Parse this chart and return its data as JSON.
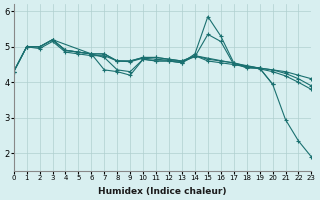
{
  "bg_color": "#d8eff0",
  "grid_color": "#b0d0d0",
  "line_color": "#1a7070",
  "xlabel": "Humidex (Indice chaleur)",
  "xlim": [
    0,
    23
  ],
  "ylim": [
    1.5,
    6.2
  ],
  "yticks": [
    2,
    3,
    4,
    5,
    6
  ],
  "xtick_labels": [
    "0",
    "1",
    "2",
    "3",
    "4",
    "5",
    "6",
    "7",
    "8",
    "9",
    "10",
    "11",
    "12",
    "13",
    "14",
    "15",
    "16",
    "17",
    "18",
    "19",
    "20",
    "21",
    "22",
    "23"
  ],
  "series": [
    {
      "x": [
        0,
        1,
        2,
        3,
        4,
        5,
        6,
        7,
        8,
        9,
        10,
        11,
        12,
        13,
        14,
        15,
        16,
        17,
        18,
        19,
        20,
        21,
        22,
        23
      ],
      "y": [
        4.3,
        5.0,
        5.0,
        5.2,
        4.9,
        4.85,
        4.8,
        4.7,
        4.35,
        4.3,
        4.65,
        4.6,
        4.6,
        4.55,
        4.8,
        5.85,
        5.3,
        4.55,
        4.4,
        4.4,
        3.95,
        2.95,
        2.35,
        1.9
      ]
    },
    {
      "x": [
        0,
        1,
        2,
        3,
        4,
        5,
        6,
        7,
        8,
        9,
        10,
        11,
        12,
        13,
        14,
        15,
        16,
        17,
        18,
        19,
        20,
        21,
        22,
        23
      ],
      "y": [
        4.3,
        5.0,
        5.0,
        5.2,
        4.9,
        4.85,
        4.8,
        4.8,
        4.6,
        4.6,
        4.7,
        4.7,
        4.65,
        4.6,
        4.75,
        4.6,
        4.55,
        4.5,
        4.45,
        4.4,
        4.35,
        4.25,
        4.1,
        3.9
      ]
    },
    {
      "x": [
        0,
        1,
        2,
        3,
        4,
        5,
        6,
        7,
        8,
        9,
        10,
        11,
        12,
        13,
        14,
        15,
        16,
        17,
        18,
        19,
        20,
        21,
        22,
        23
      ],
      "y": [
        4.3,
        5.0,
        5.0,
        5.2,
        4.9,
        4.85,
        4.8,
        4.8,
        4.6,
        4.6,
        4.7,
        4.7,
        4.65,
        4.6,
        4.75,
        4.65,
        4.6,
        4.55,
        4.45,
        4.4,
        4.35,
        4.3,
        4.2,
        4.1
      ]
    },
    {
      "x": [
        3,
        6,
        7,
        8,
        9,
        10,
        11,
        12,
        13,
        14,
        19,
        20
      ],
      "y": [
        5.2,
        4.8,
        4.35,
        4.3,
        4.2,
        4.65,
        4.6,
        4.6,
        4.55,
        4.75,
        4.4,
        3.95
      ]
    },
    {
      "x": [
        0,
        1,
        2,
        3,
        4,
        5,
        6,
        7,
        8,
        9,
        10,
        11,
        12,
        13,
        14,
        15,
        16,
        17,
        18,
        19,
        20,
        21,
        22,
        23
      ],
      "y": [
        4.3,
        5.0,
        4.95,
        5.15,
        4.85,
        4.8,
        4.75,
        4.75,
        4.6,
        4.58,
        4.68,
        4.65,
        4.62,
        4.58,
        4.72,
        5.35,
        5.15,
        4.5,
        4.43,
        4.38,
        4.3,
        4.18,
        4.0,
        3.8
      ]
    }
  ]
}
